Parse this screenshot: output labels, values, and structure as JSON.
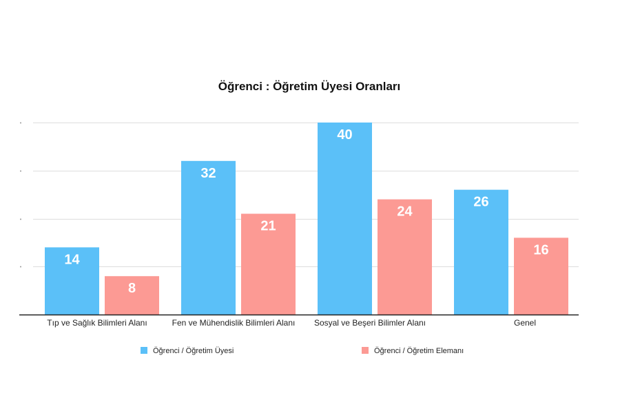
{
  "chart_data": {
    "type": "bar",
    "title": "Öğrenci : Öğretim Üyesi Oranları",
    "categories": [
      "Tıp ve Sağlık Bilimleri Alanı",
      "Fen ve Mühendislik Bilimleri Alanı",
      "Sosyal ve Beşeri Bilimler Alanı",
      "Genel"
    ],
    "series": [
      {
        "name": "Öğrenci / Öğretim Üyesi",
        "values": [
          14,
          32,
          40,
          26
        ],
        "color": "#5BC0F8"
      },
      {
        "name": "Öğrenci / Öğretim Elemanı",
        "values": [
          8,
          21,
          24,
          16
        ],
        "color": "#FC9A94"
      }
    ],
    "xlabel": "",
    "ylabel": "",
    "ylim": [
      0,
      40
    ],
    "gridlines": [
      0,
      10,
      20,
      30,
      40
    ],
    "grid": true,
    "legend": "bottom"
  }
}
